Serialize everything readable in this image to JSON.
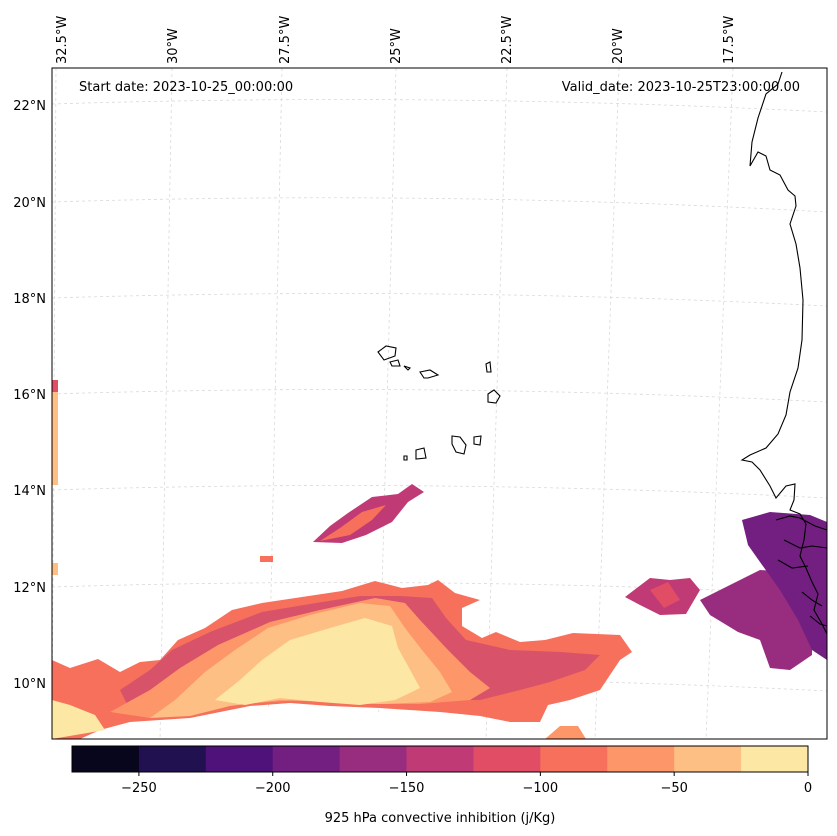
{
  "header": {
    "start_date": "Start date: 2023-10-25_00:00:00",
    "valid_date": "Valid_date: 2023-10-25T23:00:00.00"
  },
  "longitude_labels": [
    "32.5°W",
    "30°W",
    "27.5°W",
    "25°W",
    "22.5°W",
    "20°W",
    "17.5°W"
  ],
  "latitude_labels": [
    "22°N",
    "20°N",
    "18°N",
    "16°N",
    "14°N",
    "12°N",
    "10°N"
  ],
  "colorbar": {
    "label": "925 hPa convective inhibition (j/Kg)",
    "levels": [
      -275,
      -250,
      -225,
      -200,
      -175,
      -150,
      -125,
      -100,
      -75,
      -50,
      -25,
      0
    ],
    "tick_values": [
      -250,
      -200,
      -150,
      -100,
      -50,
      0
    ],
    "tick_labels": [
      "−250",
      "−200",
      "−150",
      "−100",
      "−50",
      "0"
    ],
    "colors": [
      "#07061c",
      "#221150",
      "#4f127b",
      "#721f81",
      "#982d80",
      "#c03a76",
      "#e24d66",
      "#f6705c",
      "#fd9668",
      "#febf84",
      "#fde7a4"
    ]
  },
  "colors": {
    "coastline": "#000000",
    "gridline": "#d9d9d9",
    "frame": "#000000"
  }
}
